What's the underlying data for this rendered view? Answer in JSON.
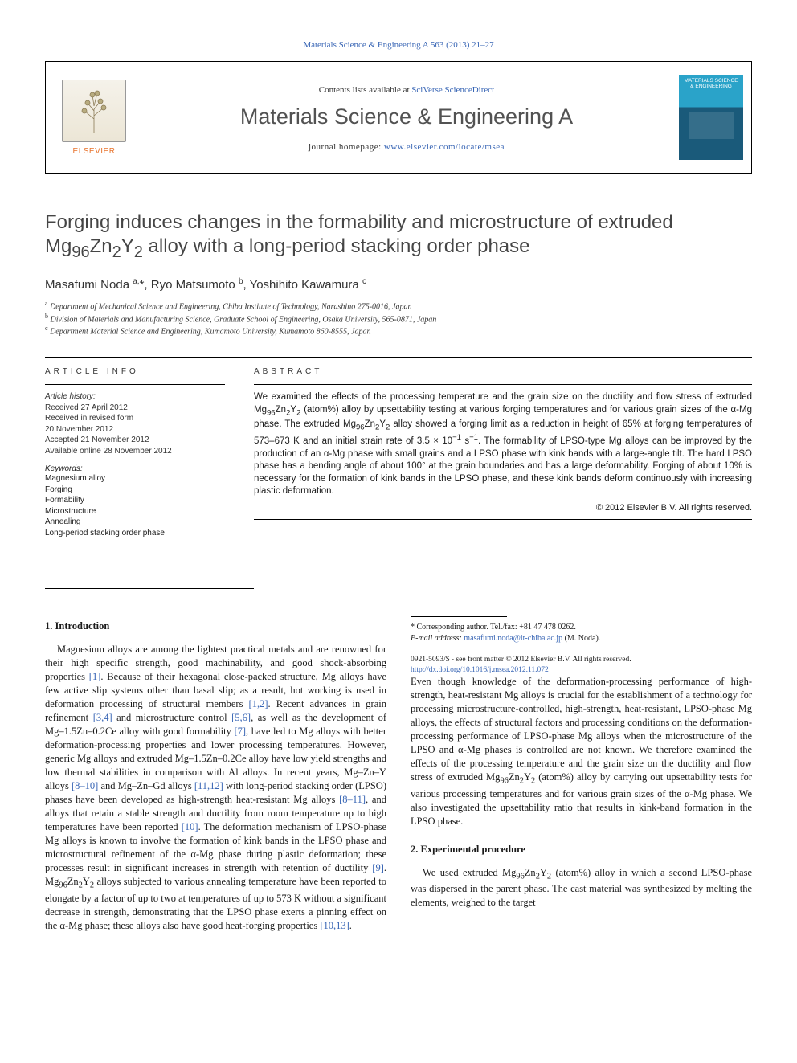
{
  "top_link": {
    "text": "Materials Science & Engineering A 563 (2013) 21–27",
    "href": "#"
  },
  "journal_box": {
    "publisher_word": "ELSEVIER",
    "contents_label": "Contents lists available at ",
    "contents_link_text": "SciVerse ScienceDirect",
    "journal_name": "Materials Science & Engineering A",
    "homepage_label": "journal homepage: ",
    "homepage_link_text": "www.elsevier.com/locate/msea",
    "cover_title": "MATERIALS SCIENCE & ENGINEERING"
  },
  "article": {
    "title_html": "Forging induces changes in the formability and microstructure of extruded Mg<sub>96</sub>Zn<sub>2</sub>Y<sub>2</sub> alloy with a long-period stacking order phase",
    "authors_html": "Masafumi Noda <sup>a,</sup>*, Ryo Matsumoto <sup>b</sup>, Yoshihito Kawamura <sup>c</sup>",
    "affiliations": [
      "Department of Mechanical Science and Engineering, Chiba Institute of Technology, Narashino 275-0016, Japan",
      "Division of Materials and Manufacturing Science, Graduate School of Engineering, Osaka University, 565-0871, Japan",
      "Department Material Science and Engineering, Kumamoto University, Kumamoto 860-8555, Japan"
    ],
    "aff_markers": [
      "a",
      "b",
      "c"
    ]
  },
  "info": {
    "article_info_head": "ARTICLE INFO",
    "abstract_head": "ABSTRACT",
    "history_label": "Article history:",
    "history_lines": [
      "Received 27 April 2012",
      "Received in revised form",
      "20 November 2012",
      "Accepted 21 November 2012",
      "Available online 28 November 2012"
    ],
    "keywords_label": "Keywords:",
    "keywords": [
      "Magnesium alloy",
      "Forging",
      "Formability",
      "Microstructure",
      "Annealing",
      "Long-period stacking order phase"
    ],
    "abstract_html": "We examined the effects of the processing temperature and the grain size on the ductility and flow stress of extruded Mg<sub>96</sub>Zn<sub>2</sub>Y<sub>2</sub> (atom%) alloy by upsettability testing at various forging temperatures and for various grain sizes of the α-Mg phase. The extruded Mg<sub>96</sub>Zn<sub>2</sub>Y<sub>2</sub> alloy showed a forging limit as a reduction in height of 65% at forging temperatures of 573–673 K and an initial strain rate of 3.5 × 10<sup>−1</sup> s<sup>−1</sup>. The formability of LPSO-type Mg alloys can be improved by the production of an α-Mg phase with small grains and a LPSO phase with kink bands with a large-angle tilt. The hard LPSO phase has a bending angle of about 100° at the grain boundaries and has a large deformability. Forging of about 10% is necessary for the formation of kink bands in the LPSO phase, and these kink bands deform continuously with increasing plastic deformation.",
    "copyright": "© 2012 Elsevier B.V. All rights reserved."
  },
  "body": {
    "intro_head": "1.  Introduction",
    "exp_head": "2.  Experimental procedure",
    "p1_html": "Magnesium alloys are among the lightest practical metals and are renowned for their high specific strength, good machinability, and good shock-absorbing properties <span class=\"ref\">[1]</span>. Because of their hexagonal close-packed structure, Mg alloys have few active slip systems other than basal slip; as a result, hot working is used in deformation processing of structural members <span class=\"ref\">[1,2]</span>. Recent advances in grain refinement <span class=\"ref\">[3,4]</span> and microstructure control <span class=\"ref\">[5,6]</span>, as well as the development of Mg–1.5Zn–0.2Ce alloy with good formability <span class=\"ref\">[7]</span>, have led to Mg alloys with better deformation-processing properties and lower processing temperatures. However, generic Mg alloys and extruded Mg–1.5Zn–0.2Ce alloy have low yield strengths and low thermal stabilities in comparison with Al alloys. In recent years, Mg–Zn–Y alloys <span class=\"ref\">[8–10]</span> and Mg–Zn–Gd alloys <span class=\"ref\">[11,12]</span> with long-period stacking order (LPSO) phases have been developed as high-strength heat-resistant Mg alloys <span class=\"ref\">[8–11]</span>, and alloys that retain a stable strength and ductility from room temperature up to high temperatures have been reported <span class=\"ref\">[10]</span>. The deformation mechanism of LPSO-phase Mg alloys is known to involve the formation of kink bands in the LPSO phase and microstructural refinement of the α-Mg phase during plastic deformation; these processes result in significant increases in strength with retention of ductility <span class=\"ref\">[9]</span>. Mg<sub>96</sub>Zn<sub>2</sub>Y<sub>2</sub> alloys subjected to various annealing temperature have been reported to elongate by a factor of up to two at temperatures of up to 573 K without a significant decrease in strength, demonstrating that the LPSO phase exerts a pinning effect on the α-Mg phase; these alloys also have good heat-forging properties <span class=\"ref\">[10,13]</span>.",
    "p2_html": "Even though knowledge of the deformation-processing performance of high-strength, heat-resistant Mg alloys is crucial for the establishment of a technology for processing microstructure-controlled, high-strength, heat-resistant, LPSO-phase Mg alloys, the effects of structural factors and processing conditions on the deformation-processing performance of LPSO-phase Mg alloys when the microstructure of the LPSO and α-Mg phases is controlled are not known. We therefore examined the effects of the processing temperature and the grain size on the ductility and flow stress of extruded Mg<sub>96</sub>Zn<sub>2</sub>Y<sub>2</sub> (atom%) alloy by carrying out upsettability tests for various processing temperatures and for various grain sizes of the α-Mg phase. We also investigated the upsettability ratio that results in kink-band formation in the LPSO phase.",
    "p3_html": "We used extruded Mg<sub>96</sub>Zn<sub>2</sub>Y<sub>2</sub> (atom%) alloy in which a second LPSO-phase was dispersed in the parent phase. The cast material was synthesized by melting the elements, weighed to the target"
  },
  "footnote": {
    "corr": "* Corresponding author. Tel./fax: +81 47 478 0262.",
    "email_label": "E-mail address: ",
    "email": "masafumi.noda@it-chiba.ac.jp",
    "email_tail": " (M. Noda)."
  },
  "footer": {
    "line1": "0921-5093/$ - see front matter © 2012 Elsevier B.V. All rights reserved.",
    "doi_text": "http://dx.doi.org/10.1016/j.msea.2012.11.072"
  }
}
